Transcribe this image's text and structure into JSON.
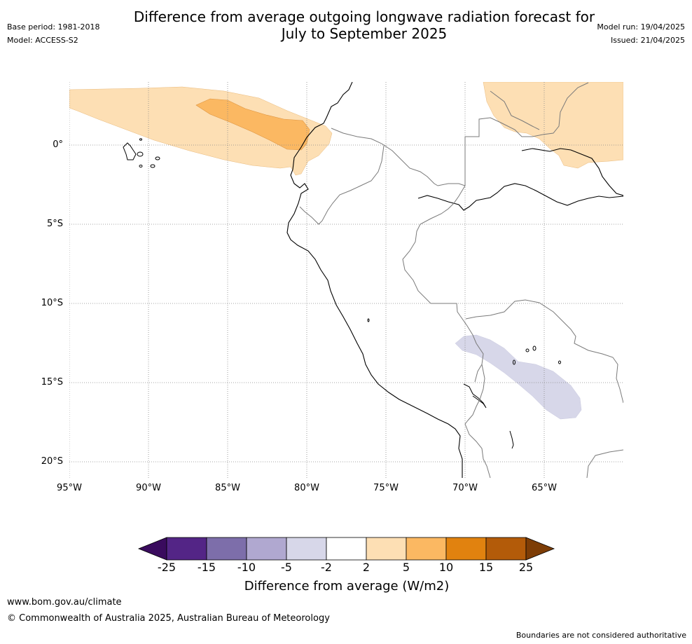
{
  "header": {
    "title_line1": "Difference from average outgoing longwave radiation forecast for",
    "title_line2": "July to September 2025",
    "base_period": "Base period: 1981-2018",
    "model": "Model: ACCESS-S2",
    "model_run": "Model run: 19/04/2025",
    "issued": "Issued: 21/04/2025"
  },
  "map": {
    "lat_labels": [
      "0°",
      "5°S",
      "10°S",
      "15°S",
      "20°S"
    ],
    "lon_labels": [
      "95°W",
      "90°W",
      "85°W",
      "80°W",
      "75°W",
      "70°W",
      "65°W"
    ],
    "grid": true,
    "regions": [
      {
        "name": "equatorial-pacific-positive",
        "category": "2 to 5",
        "color": "#fddfb4"
      },
      {
        "name": "equatorial-pacific-core",
        "category": "5 to 10",
        "color": "#fbb862"
      },
      {
        "name": "northern-amazon-positive",
        "category": "2 to 5",
        "color": "#fddfb4"
      },
      {
        "name": "bolivia-negative",
        "category": "-5 to -2",
        "color": "#d7d7e9"
      }
    ]
  },
  "colorbar": {
    "label": "Difference from average (W/m2)",
    "ticks": [
      "-25",
      "-15",
      "-10",
      "-5",
      "-2",
      "2",
      "5",
      "10",
      "15",
      "25"
    ],
    "colors": [
      "#3a0b5e",
      "#532586",
      "#7d6eaa",
      "#b0a8d0",
      "#d7d7e9",
      "#ffffff",
      "#fddfb4",
      "#fbb862",
      "#e1820f",
      "#b35b09",
      "#7d3d06"
    ]
  },
  "footer": {
    "website": "www.bom.gov.au/climate",
    "copyright": "© Commonwealth of Australia 2025, Australian Bureau of Meteorology",
    "disclaimer": "Boundaries are not considered authoritative"
  }
}
